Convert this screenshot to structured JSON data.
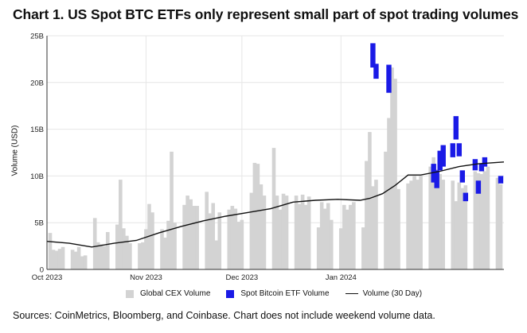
{
  "title": "Chart 1. US Spot BTC ETFs only represent small part of spot trading volumes",
  "source_note": "Sources: CoinMetrics, Bloomberg, and Coinbase. Chart does not include weekend volume data.",
  "colors": {
    "cex": "#d3d3d3",
    "etf": "#1a1ae6",
    "line": "#111111",
    "grid": "#e6e6e6"
  },
  "chart_data": {
    "type": "bar",
    "title": "Chart 1. US Spot BTC ETFs only represent small part of spot trading volumes",
    "ylabel": "Volume (USD)",
    "xlabel": "",
    "ylim": [
      0,
      25
    ],
    "y_unit": "B",
    "yticks": [
      "0",
      "5B",
      "10B",
      "15B",
      "20B",
      "25B"
    ],
    "x_range": [
      "2023-10-01",
      "2024-02-21"
    ],
    "xticks": [
      {
        "date": "2023-10-01",
        "label": "Oct 2023"
      },
      {
        "date": "2023-11-01",
        "label": "Nov 2023"
      },
      {
        "date": "2023-12-01",
        "label": "Dec 2023"
      },
      {
        "date": "2024-01-01",
        "label": "Jan 2024"
      }
    ],
    "grid": true,
    "legend_position": "bottom",
    "series": [
      {
        "name": "Global CEX Volume",
        "kind": "bar",
        "x": [
          "2023-10-02",
          "2023-10-03",
          "2023-10-04",
          "2023-10-05",
          "2023-10-06",
          "2023-10-09",
          "2023-10-10",
          "2023-10-11",
          "2023-10-12",
          "2023-10-13",
          "2023-10-16",
          "2023-10-17",
          "2023-10-18",
          "2023-10-19",
          "2023-10-20",
          "2023-10-23",
          "2023-10-24",
          "2023-10-25",
          "2023-10-26",
          "2023-10-27",
          "2023-10-30",
          "2023-10-31",
          "2023-11-01",
          "2023-11-02",
          "2023-11-03",
          "2023-11-06",
          "2023-11-07",
          "2023-11-08",
          "2023-11-09",
          "2023-11-10",
          "2023-11-13",
          "2023-11-14",
          "2023-11-15",
          "2023-11-16",
          "2023-11-17",
          "2023-11-20",
          "2023-11-21",
          "2023-11-22",
          "2023-11-23",
          "2023-11-24",
          "2023-11-27",
          "2023-11-28",
          "2023-11-29",
          "2023-11-30",
          "2023-12-01",
          "2023-12-04",
          "2023-12-05",
          "2023-12-06",
          "2023-12-07",
          "2023-12-08",
          "2023-12-11",
          "2023-12-12",
          "2023-12-13",
          "2023-12-14",
          "2023-12-15",
          "2023-12-18",
          "2023-12-19",
          "2023-12-20",
          "2023-12-21",
          "2023-12-22",
          "2023-12-25",
          "2023-12-26",
          "2023-12-27",
          "2023-12-28",
          "2023-12-29",
          "2024-01-01",
          "2024-01-02",
          "2024-01-03",
          "2024-01-04",
          "2024-01-05",
          "2024-01-08",
          "2024-01-09",
          "2024-01-10",
          "2024-01-11",
          "2024-01-12",
          "2024-01-15",
          "2024-01-16",
          "2024-01-17",
          "2024-01-18",
          "2024-01-19",
          "2024-01-22",
          "2024-01-23",
          "2024-01-24",
          "2024-01-25",
          "2024-01-26",
          "2024-01-29",
          "2024-01-30",
          "2024-01-31",
          "2024-02-01",
          "2024-02-02",
          "2024-02-05",
          "2024-02-06",
          "2024-02-07",
          "2024-02-08",
          "2024-02-09",
          "2024-02-12",
          "2024-02-13",
          "2024-02-14",
          "2024-02-15",
          "2024-02-16",
          "2024-02-19",
          "2024-02-20"
        ],
        "values": [
          3.9,
          2.1,
          2.0,
          2.2,
          2.4,
          2.1,
          1.9,
          2.4,
          1.4,
          1.5,
          5.5,
          2.9,
          2.7,
          2.5,
          4.0,
          4.8,
          9.6,
          4.4,
          3.6,
          2.8,
          2.8,
          2.9,
          4.3,
          7.0,
          6.1,
          4.3,
          3.4,
          5.2,
          12.6,
          5.0,
          6.9,
          7.9,
          7.5,
          6.8,
          6.8,
          8.3,
          6.0,
          7.1,
          3.1,
          6.1,
          6.4,
          6.8,
          6.5,
          5.1,
          5.3,
          8.2,
          11.4,
          11.3,
          9.1,
          7.9,
          13.0,
          7.9,
          6.4,
          8.1,
          7.9,
          7.9,
          7.0,
          8.0,
          6.9,
          7.8,
          4.5,
          7.2,
          6.5,
          7.1,
          5.3,
          4.4,
          6.9,
          6.4,
          6.9,
          7.2,
          4.5,
          11.6,
          14.7,
          8.9,
          9.6,
          12.6,
          16.2,
          21.6,
          20.4,
          8.6,
          9.2,
          9.5,
          10.0,
          9.6,
          10.0,
          11.0,
          12.0,
          10.7,
          10.2,
          9.6,
          9.5,
          7.3,
          9.3,
          8.7,
          9.0,
          10.5,
          10.3,
          10.2,
          10.5,
          11.0,
          9.8,
          9.1
        ]
      },
      {
        "name": "Spot Bitcoin ETF Volume",
        "kind": "floating",
        "x": [
          "2024-01-11",
          "2024-01-12",
          "2024-01-16",
          "2024-01-17",
          "2024-01-18",
          "2024-01-19",
          "2024-01-22",
          "2024-01-23",
          "2024-01-24",
          "2024-01-25",
          "2024-01-26",
          "2024-01-29",
          "2024-01-30",
          "2024-01-31",
          "2024-02-01",
          "2024-02-02",
          "2024-02-05",
          "2024-02-06",
          "2024-02-07",
          "2024-02-08",
          "2024-02-09",
          "2024-02-12",
          "2024-02-13",
          "2024-02-14",
          "2024-02-15",
          "2024-02-16",
          "2024-02-20"
        ],
        "low": [
          21.6,
          20.4,
          18.9,
          0,
          0,
          0,
          0,
          0,
          0,
          0,
          0,
          0,
          9.3,
          8.7,
          0,
          0,
          0,
          11.9,
          12.1,
          0,
          0,
          0,
          0,
          8.9,
          11.0,
          0,
          9.2
        ],
        "high": [
          24.2,
          22.0,
          21.9,
          0,
          0,
          0,
          0,
          0,
          0,
          0,
          0,
          0,
          11.3,
          10.6,
          0,
          0,
          0,
          16.4,
          13.5,
          0,
          0,
          0,
          0,
          10.5,
          11.8,
          0,
          10.0
        ],
        "bars": [
          {
            "x": "2024-01-11",
            "low": 21.6,
            "high": 24.2
          },
          {
            "x": "2024-01-12",
            "low": 20.4,
            "high": 22.0
          },
          {
            "x": "2024-01-16",
            "low": 18.9,
            "high": 21.9
          },
          {
            "x": "2024-01-30",
            "low": 9.3,
            "high": 11.3
          },
          {
            "x": "2024-01-31",
            "low": 8.7,
            "high": 10.6
          },
          {
            "x": "2024-02-01",
            "low": 10.6,
            "high": 12.7
          },
          {
            "x": "2024-02-02",
            "low": 11.0,
            "high": 13.3
          },
          {
            "x": "2024-02-05",
            "low": 12.0,
            "high": 13.5
          },
          {
            "x": "2024-02-06",
            "low": 13.9,
            "high": 16.4
          },
          {
            "x": "2024-02-07",
            "low": 12.1,
            "high": 13.5
          },
          {
            "x": "2024-02-08",
            "low": 9.3,
            "high": 10.6
          },
          {
            "x": "2024-02-09",
            "low": 7.3,
            "high": 8.2
          },
          {
            "x": "2024-02-12",
            "low": 10.6,
            "high": 11.8
          },
          {
            "x": "2024-02-13",
            "low": 8.1,
            "high": 9.5
          },
          {
            "x": "2024-02-14",
            "low": 10.5,
            "high": 11.3
          },
          {
            "x": "2024-02-15",
            "low": 11.0,
            "high": 12.0
          },
          {
            "x": "2024-02-20",
            "low": 9.2,
            "high": 10.0
          }
        ]
      },
      {
        "name": "Volume (30 Day)",
        "kind": "line",
        "x": [
          "2023-10-01",
          "2023-10-08",
          "2023-10-15",
          "2023-10-22",
          "2023-10-29",
          "2023-11-05",
          "2023-11-12",
          "2023-11-19",
          "2023-11-26",
          "2023-12-03",
          "2023-12-10",
          "2023-12-17",
          "2023-12-24",
          "2023-12-31",
          "2024-01-07",
          "2024-01-10",
          "2024-01-14",
          "2024-01-18",
          "2024-01-22",
          "2024-01-26",
          "2024-02-01",
          "2024-02-07",
          "2024-02-13",
          "2024-02-21"
        ],
        "values": [
          3.0,
          2.8,
          2.4,
          2.8,
          3.1,
          3.9,
          4.6,
          5.2,
          5.7,
          6.1,
          6.5,
          7.2,
          7.4,
          7.5,
          7.4,
          7.6,
          8.1,
          9.0,
          10.1,
          10.1,
          10.5,
          11.0,
          11.3,
          11.5
        ]
      }
    ]
  }
}
